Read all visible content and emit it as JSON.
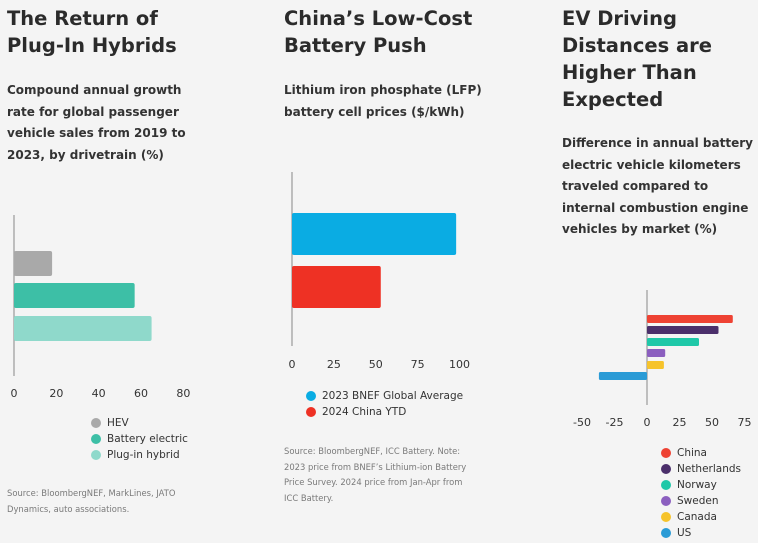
{
  "panels": [
    {
      "title": "The Return of\nPlug-In Hybrids",
      "subtitle": "Compound annual growth\nrate for global passenger\nvehicle sales from 2019 to\n2023, by drivetrain (%)",
      "source": "Source: BloombergNEF, MarkLines, JATO\nDynamics, auto associations."
    },
    {
      "title": "China’s Low-Cost\nBattery Push",
      "subtitle": "Lithium iron phosphate (LFP)\nbattery cell prices ($/kWh)",
      "source": "Source: BloombergNEF, ICC Battery. Note:\n2023 price from BNEF’s Lithium-ion Battery\nPrice Survey. 2024 price from Jan-Apr from\nICC Battery."
    },
    {
      "title": "EV Driving\nDistances are\nHigher Than\nExpected",
      "subtitle": "Difference in annual battery\nelectric vehicle kilometers\ntraveled compared to\ninternal combustion engine\nvehicles by market (%)",
      "source": ""
    }
  ],
  "chart_data": [
    {
      "type": "bar",
      "orientation": "horizontal",
      "title": "The Return of Plug-In Hybrids",
      "subtitle": "Compound annual growth rate for global passenger vehicle sales from 2019 to 2023, by drivetrain (%)",
      "categories": [
        "HEV",
        "Battery electric",
        "Plug-in hybrid"
      ],
      "values": [
        18,
        57,
        65
      ],
      "colors": [
        "#a9a9a9",
        "#3dbfa6",
        "#8fd9cb"
      ],
      "xlim": [
        0,
        90
      ],
      "xticks": [
        0,
        20,
        40,
        60,
        80
      ],
      "grid": false,
      "legend": "bottom"
    },
    {
      "type": "bar",
      "orientation": "horizontal",
      "title": "China’s Low-Cost Battery Push",
      "subtitle": "Lithium iron phosphate (LFP) battery cell prices ($/kWh)",
      "categories": [
        "2023 BNEF Global Average",
        "2024 China YTD"
      ],
      "values": [
        98,
        53
      ],
      "colors": [
        "#0aace3",
        "#ee3124"
      ],
      "xlim": [
        0,
        100
      ],
      "xticks": [
        0,
        25,
        50,
        75,
        100
      ],
      "grid": false,
      "legend": "bottom"
    },
    {
      "type": "bar",
      "orientation": "horizontal",
      "title": "EV Driving Distances are Higher Than Expected",
      "subtitle": "Difference in annual battery electric vehicle kilometers traveled compared to internal combustion engine vehicles by market (%)",
      "categories": [
        "China",
        "Netherlands",
        "Norway",
        "Sweden",
        "Canada",
        "US"
      ],
      "values": [
        66,
        55,
        40,
        14,
        13,
        -37
      ],
      "colors": [
        "#ee4233",
        "#4b2f6b",
        "#1fc8a8",
        "#8b5fbf",
        "#f6c32b",
        "#2a9bd6"
      ],
      "xlim": [
        -60,
        80
      ],
      "xticks": [
        -50,
        -25,
        0,
        25,
        50,
        75
      ],
      "grid": false,
      "legend": "bottom"
    }
  ]
}
